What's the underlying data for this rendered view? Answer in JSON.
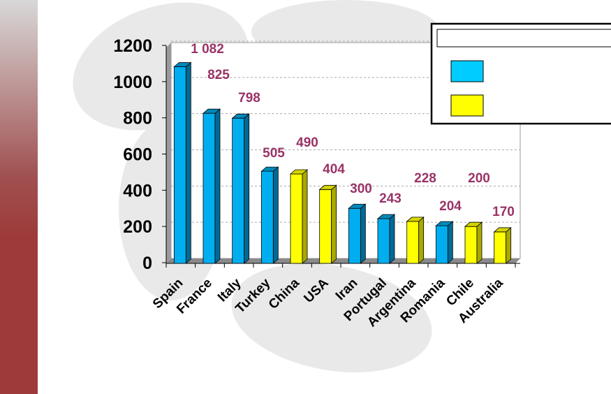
{
  "chart_data": {
    "type": "bar",
    "title": "",
    "xlabel": "",
    "ylabel": "",
    "categories": [
      "Spain",
      "France",
      "Italy",
      "Turkey",
      "China",
      "USA",
      "Iran",
      "Portugal",
      "Argentina",
      "Romania",
      "Chile",
      "Australia"
    ],
    "values": [
      1082,
      825,
      798,
      505,
      490,
      404,
      300,
      243,
      228,
      204,
      200,
      170
    ],
    "value_labels": [
      "1 082",
      "825",
      "798",
      "505",
      "490",
      "404",
      "300",
      "243",
      "228",
      "204",
      "200",
      "170"
    ],
    "groups": [
      "blue",
      "blue",
      "blue",
      "blue",
      "yellow",
      "yellow",
      "blue",
      "blue",
      "yellow",
      "blue",
      "yellow",
      "yellow"
    ],
    "ylim": [
      0,
      1200
    ],
    "yticks": [
      "0",
      "200",
      "400",
      "600",
      "800",
      "1000",
      "1200"
    ],
    "grid": true,
    "legend": {
      "placement": "top-right",
      "entries": [
        {
          "color": "#00ccff"
        },
        {
          "color": "#ffff00"
        }
      ]
    },
    "colors": {
      "blue": "#00aeef",
      "yellow": "#ffff00",
      "label": "#993366"
    }
  }
}
